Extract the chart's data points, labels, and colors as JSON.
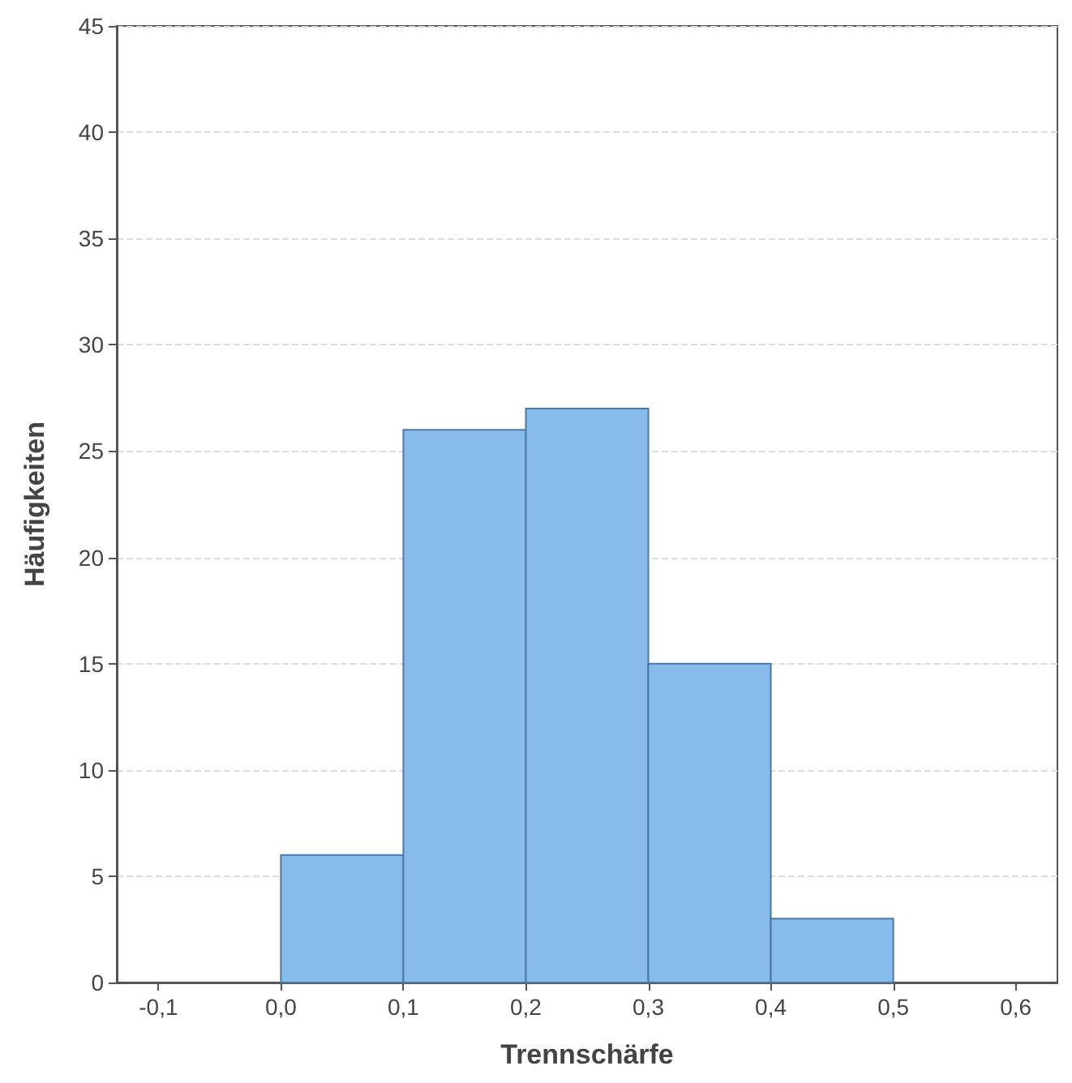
{
  "chart_data": {
    "type": "histogram",
    "xlabel": "Trennschärfe",
    "ylabel": "Häufigkeiten",
    "bins": [
      0,
      0.1,
      0.2,
      0.3,
      0.4,
      0.5
    ],
    "values": [
      6,
      26,
      27,
      15,
      3
    ],
    "color": "#87bbec",
    "xlim": [
      -0.134,
      0.634
    ],
    "xticks": [
      {
        "value": -0.1,
        "label": "-0,1"
      },
      {
        "value": 0,
        "label": "0,0"
      },
      {
        "value": 0.1,
        "label": "0,1"
      },
      {
        "value": 0.2,
        "label": "0,2"
      },
      {
        "value": 0.3,
        "label": "0,3"
      },
      {
        "value": 0.4,
        "label": "0,4"
      },
      {
        "value": 0.5,
        "label": "0,5"
      },
      {
        "value": 0.6,
        "label": "0,6"
      }
    ],
    "ylim": [
      0,
      45
    ],
    "yticks": [
      0,
      5,
      10,
      15,
      20,
      25,
      30,
      35,
      40,
      45
    ],
    "grid": "y"
  }
}
